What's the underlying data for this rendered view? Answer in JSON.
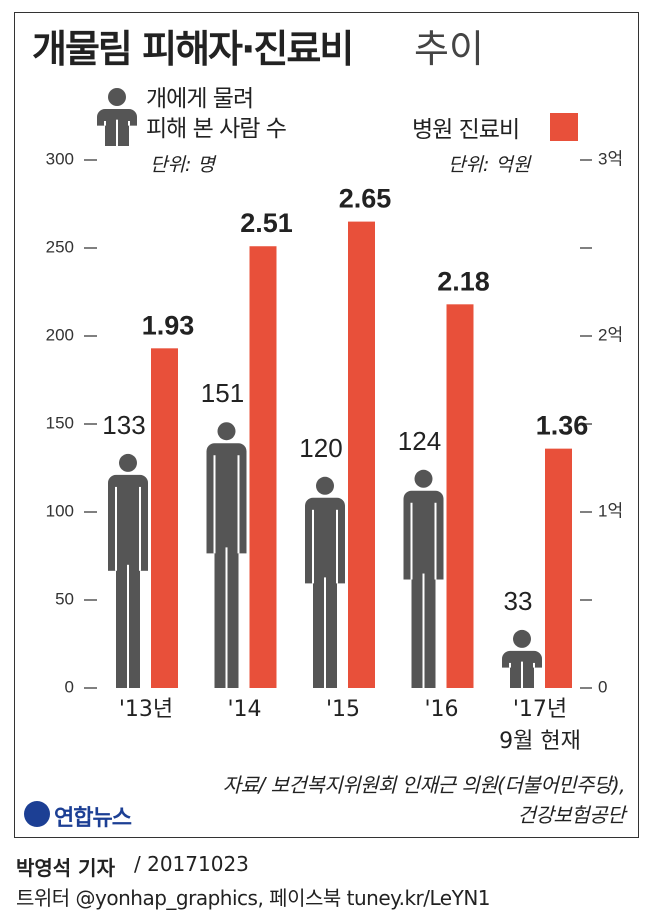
{
  "chart_data": {
    "type": "bar",
    "title": "개물림 피해자·진료비",
    "title_suffix": "추이",
    "categories": [
      "'13년",
      "'14",
      "'15",
      "'16",
      "'17년\n9월 현재"
    ],
    "series": [
      {
        "name": "개에게 물려\n피해 본 사람 수",
        "color": "#555555",
        "marker": "person",
        "unit": "단위: 명",
        "values": [
          133,
          151,
          120,
          124,
          33
        ]
      },
      {
        "name": "병원 진료비",
        "color": "#e8503a",
        "axis": "y2",
        "unit": "단위: 억원",
        "values": [
          1.93,
          2.51,
          2.65,
          2.18,
          1.36
        ]
      }
    ],
    "ylim": [
      0,
      300
    ],
    "yticks": [
      0,
      50,
      100,
      150,
      200,
      250,
      300
    ],
    "y2lim": [
      0,
      3
    ],
    "y2ticks": [
      0,
      {
        "value": 1,
        "label": "1억"
      },
      {
        "value": 2,
        "label": "2억"
      },
      {
        "value": 3,
        "label": "3억"
      }
    ],
    "y2minor_ticks": [
      0.5,
      1.5,
      2.5
    ],
    "grid": false,
    "source": "자료/ 보건복지위원회 인재근 의원(더불어민주당),\n건강보험공단",
    "logo": "연합뉴스",
    "reporter": "박영석 기자",
    "date": "/ 20171023",
    "social": "트위터 @yonhap_graphics, 페이스북 tuney.kr/LeYN1"
  }
}
